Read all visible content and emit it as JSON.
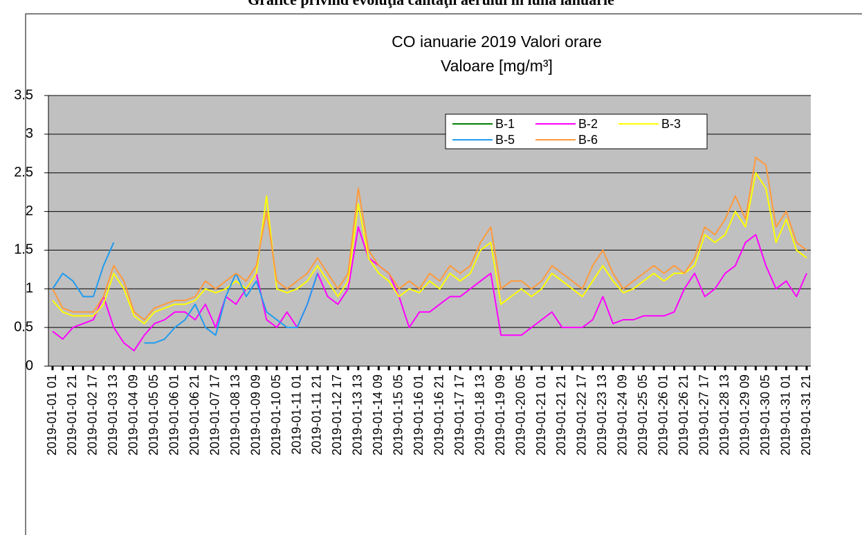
{
  "heading": "Grafice privind evoluţia calităţii aerului în luna ianuarie",
  "chart_data": {
    "type": "line",
    "title": "CO ianuarie 2019 Valori orare",
    "subtitle": "Valoare [mg/m³]",
    "categories": [
      "2019-01-01 01",
      null,
      "2019-01-01 21",
      null,
      "2019-01-02 17",
      null,
      "2019-01-03 13",
      null,
      "2019-01-04 09",
      null,
      "2019-01-05 05",
      null,
      "2019-01-06 01",
      null,
      "2019-01-06 21",
      null,
      "2019-01-07 17",
      null,
      "2019-01-08 13",
      null,
      "2019-01-09 09",
      null,
      "2019-01-10 05",
      null,
      "2019-01-11 01",
      null,
      "2019-01-11 21",
      null,
      "2019-01-12 17",
      null,
      "2019-01-13 13",
      null,
      "2019-01-14 09",
      null,
      "2019-01-15 05",
      null,
      "2019-01-16 01",
      null,
      "2019-01-16 21",
      null,
      "2019-01-17 17",
      null,
      "2019-01-18 13",
      null,
      "2019-01-19 09",
      null,
      "2019-01-20 05",
      null,
      "2019-01-21 01",
      null,
      "2019-01-21 21",
      null,
      "2019-01-22 17",
      null,
      "2019-01-23 13",
      null,
      "2019-01-24 09",
      null,
      "2019-01-25 05",
      null,
      "2019-01-26 01",
      null,
      "2019-01-26 21",
      null,
      "2019-01-27 17",
      null,
      "2019-01-28 13",
      null,
      "2019-01-29 09",
      null,
      "2019-01-30 05",
      null,
      "2019-01-31 01",
      null,
      "2019-01-31 21"
    ],
    "series": [
      {
        "name": "B-1",
        "color": "#008000",
        "values": [
          null,
          null,
          null,
          null,
          null,
          null,
          null,
          null,
          null,
          null,
          null,
          null,
          null,
          null,
          null,
          null,
          null,
          null,
          null,
          null,
          null,
          null,
          null,
          null,
          null,
          null,
          null,
          null,
          null,
          null,
          null,
          null,
          null,
          null,
          null,
          null,
          null,
          null,
          null,
          null,
          null,
          null,
          null,
          null,
          null,
          null,
          null,
          null,
          null,
          null,
          null,
          null,
          null,
          null,
          null,
          null,
          null,
          null,
          null,
          null,
          null,
          null,
          null,
          null,
          null,
          null,
          null,
          null,
          null,
          null,
          null,
          null,
          null,
          null,
          null
        ]
      },
      {
        "name": "B-2",
        "color": "#ff00ff",
        "values": [
          0.45,
          0.35,
          0.5,
          0.55,
          0.6,
          0.9,
          0.5,
          0.3,
          0.2,
          0.4,
          0.55,
          0.6,
          0.7,
          0.7,
          0.6,
          0.8,
          0.5,
          0.9,
          0.8,
          1.0,
          1.2,
          0.6,
          0.5,
          0.7,
          0.5,
          0.8,
          1.2,
          0.9,
          0.8,
          1.0,
          1.8,
          1.4,
          1.3,
          1.2,
          0.9,
          0.5,
          0.7,
          0.7,
          0.8,
          0.9,
          0.9,
          1.0,
          1.1,
          1.2,
          0.4,
          0.4,
          0.4,
          0.5,
          0.6,
          0.7,
          0.5,
          0.5,
          0.5,
          0.6,
          0.9,
          0.55,
          0.6,
          0.6,
          0.65,
          0.65,
          0.65,
          0.7,
          1.0,
          1.2,
          0.9,
          1.0,
          1.2,
          1.3,
          1.6,
          1.7,
          1.3,
          1.0,
          1.1,
          0.9,
          1.2
        ]
      },
      {
        "name": "B-3",
        "color": "#ffff00",
        "values": [
          0.85,
          0.7,
          0.65,
          0.65,
          0.65,
          0.8,
          1.2,
          1.0,
          0.65,
          0.55,
          0.7,
          0.75,
          0.8,
          0.8,
          0.85,
          1.0,
          0.95,
          1.0,
          1.1,
          1.0,
          1.2,
          2.2,
          1.0,
          0.95,
          1.0,
          1.1,
          1.3,
          1.1,
          0.9,
          1.1,
          2.1,
          1.4,
          1.2,
          1.1,
          0.9,
          1.0,
          0.95,
          1.1,
          1.0,
          1.2,
          1.1,
          1.2,
          1.5,
          1.6,
          0.8,
          0.9,
          1.0,
          0.9,
          1.0,
          1.2,
          1.1,
          1.0,
          0.9,
          1.1,
          1.3,
          1.1,
          0.95,
          1.0,
          1.1,
          1.2,
          1.1,
          1.2,
          1.2,
          1.3,
          1.7,
          1.6,
          1.7,
          2.0,
          1.8,
          2.5,
          2.3,
          1.6,
          1.9,
          1.5,
          1.4
        ]
      },
      {
        "name": "B-5",
        "color": "#1e9bf0",
        "values": [
          1.0,
          1.2,
          1.1,
          0.9,
          0.9,
          1.3,
          1.6,
          null,
          null,
          0.3,
          0.3,
          0.35,
          0.5,
          0.6,
          0.8,
          0.5,
          0.4,
          0.9,
          1.2,
          0.9,
          1.1,
          0.7,
          0.6,
          0.5,
          0.5,
          0.8,
          1.2,
          null,
          null,
          null,
          null,
          null,
          null,
          null,
          null,
          null,
          null,
          null,
          null,
          null,
          null,
          null,
          null,
          null,
          null,
          null,
          null,
          null,
          null,
          null,
          null,
          null,
          null,
          null,
          null,
          null,
          null,
          null,
          null,
          null,
          null,
          null,
          null,
          null,
          null,
          null,
          null,
          null,
          null,
          null,
          null,
          null,
          null,
          null,
          null
        ]
      },
      {
        "name": "B-6",
        "color": "#ff9a3c",
        "values": [
          1.0,
          0.75,
          0.7,
          0.7,
          0.7,
          0.9,
          1.3,
          1.1,
          0.7,
          0.6,
          0.75,
          0.8,
          0.85,
          0.85,
          0.9,
          1.1,
          1.0,
          1.1,
          1.2,
          1.1,
          1.3,
          2.0,
          1.1,
          1.0,
          1.1,
          1.2,
          1.4,
          1.2,
          1.0,
          1.2,
          2.3,
          1.5,
          1.3,
          1.2,
          1.0,
          1.1,
          1.0,
          1.2,
          1.1,
          1.3,
          1.2,
          1.3,
          1.6,
          1.8,
          1.0,
          1.1,
          1.1,
          1.0,
          1.1,
          1.3,
          1.2,
          1.1,
          1.0,
          1.3,
          1.5,
          1.2,
          1.0,
          1.1,
          1.2,
          1.3,
          1.2,
          1.3,
          1.2,
          1.4,
          1.8,
          1.7,
          1.9,
          2.2,
          1.9,
          2.7,
          2.6,
          1.8,
          2.0,
          1.6,
          1.5
        ]
      }
    ],
    "ylim": [
      0,
      3.5
    ],
    "yticks": [
      0,
      0.5,
      1,
      1.5,
      2,
      2.5,
      3,
      3.5
    ],
    "grid": true,
    "legend": "top-right",
    "plot_background": "#c0c0c0"
  }
}
